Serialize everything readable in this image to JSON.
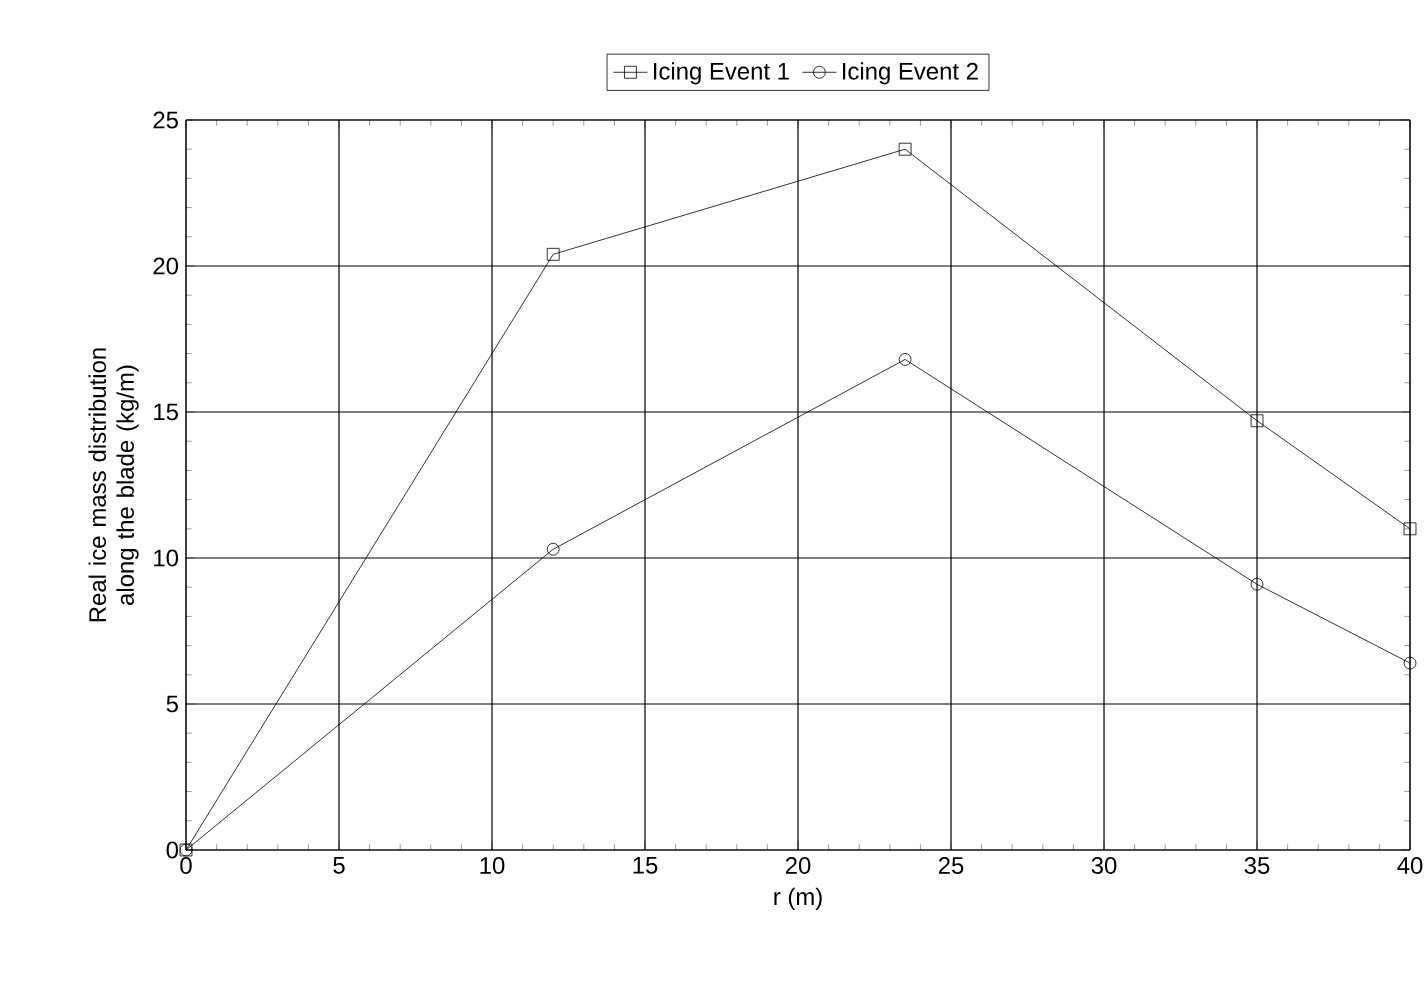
{
  "chart_data": {
    "type": "line",
    "xlabel": "r (m)",
    "ylabel": "Real ice mass distribution along the blade (kg/m)",
    "x": [
      0,
      12,
      23.5,
      35,
      40
    ],
    "series": [
      {
        "name": "Icing Event 1",
        "color": "#000000",
        "marker": "square",
        "values": [
          0,
          20.4,
          24.0,
          14.7,
          11.0
        ]
      },
      {
        "name": "Icing Event 2",
        "color": "#000000",
        "marker": "circle",
        "values": [
          0,
          10.3,
          16.8,
          9.1,
          6.4
        ]
      }
    ],
    "xlim": [
      0,
      40
    ],
    "ylim": [
      0,
      25
    ],
    "xticks": [
      0,
      5,
      10,
      15,
      20,
      25,
      30,
      35,
      40
    ],
    "yticks": [
      0,
      5,
      10,
      15,
      20,
      25
    ],
    "grid": true,
    "legend": "top",
    "line_style": "solid"
  }
}
